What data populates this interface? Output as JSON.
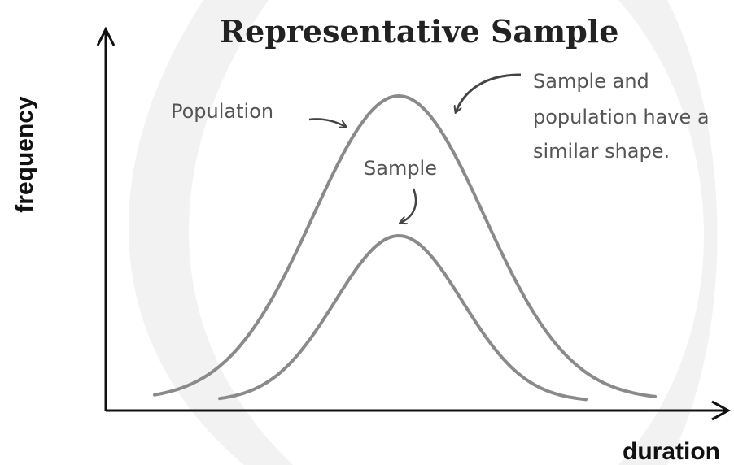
{
  "title": "Representative Sample",
  "axes": {
    "x_label": "duration",
    "y_label": "frequency"
  },
  "labels": {
    "population": "Population",
    "sample": "Sample"
  },
  "annotation": {
    "lines": [
      "Sample and",
      "population have a",
      "similar shape."
    ]
  }
}
